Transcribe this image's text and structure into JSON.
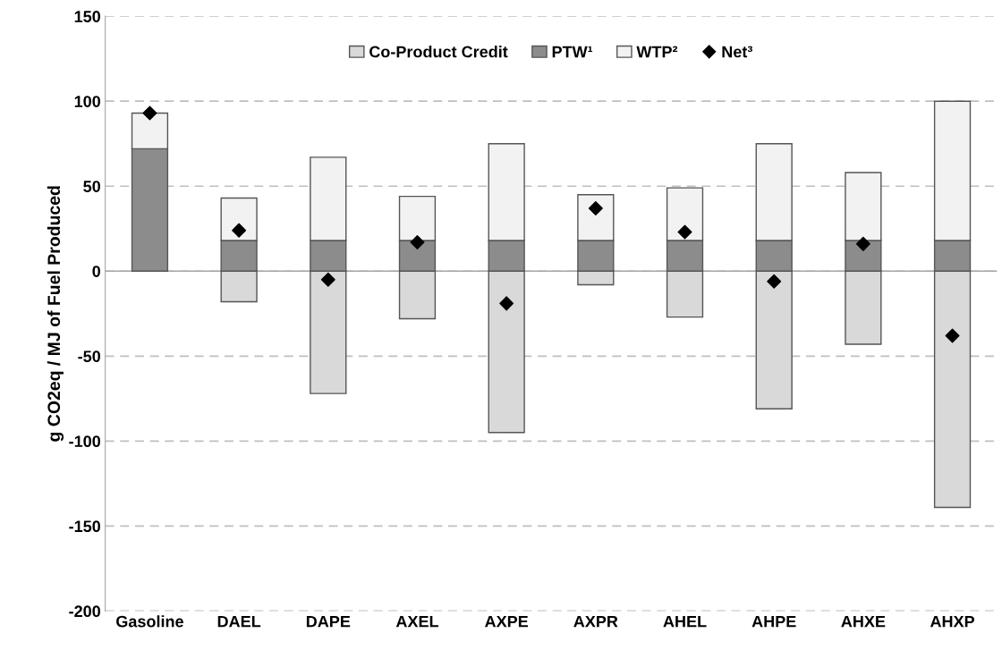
{
  "chart_data": {
    "type": "bar",
    "stacked": true,
    "ylabel": "g CO2eq / MJ of Fuel Produced",
    "categories": [
      "Gasoline",
      "DAEL",
      "DAPE",
      "AXEL",
      "AXPE",
      "AXPR",
      "AHEL",
      "AHPE",
      "AHXE",
      "AHXP"
    ],
    "series": [
      {
        "name": "Co-Product Credit",
        "color": "#d9d9d9",
        "values": [
          null,
          -18,
          -72,
          -28,
          -95,
          -8,
          -27,
          -81,
          -43,
          -139
        ]
      },
      {
        "name": "PTW¹",
        "color": "#8c8c8c",
        "values": [
          72,
          18,
          18,
          18,
          18,
          18,
          18,
          18,
          18,
          18
        ]
      },
      {
        "name": "WTP²",
        "color": "#f2f2f2",
        "values": [
          21,
          25,
          49,
          26,
          57,
          27,
          31,
          57,
          40,
          82
        ]
      },
      {
        "name": "Net³",
        "type": "scatter",
        "color": "#000000",
        "marker": "diamond",
        "x": [
          "Gasoline",
          "DAEL",
          "DAPE",
          "AXEL",
          "AXPE",
          "AXPR",
          "AHEL",
          "AHPE",
          "AHXE",
          "AHXP"
        ],
        "values": [
          93,
          24,
          -5,
          17,
          -19,
          37,
          23,
          -6,
          16,
          -38
        ]
      }
    ],
    "ylim": [
      -200,
      150
    ],
    "yticks": [
      -200,
      -150,
      -100,
      -50,
      0,
      50,
      100,
      150
    ],
    "grid": "y",
    "legend": "top",
    "ref_lines": [
      {
        "axis": "y",
        "value": 0,
        "color": "#a6a6a6",
        "line_style": "solid"
      }
    ]
  }
}
